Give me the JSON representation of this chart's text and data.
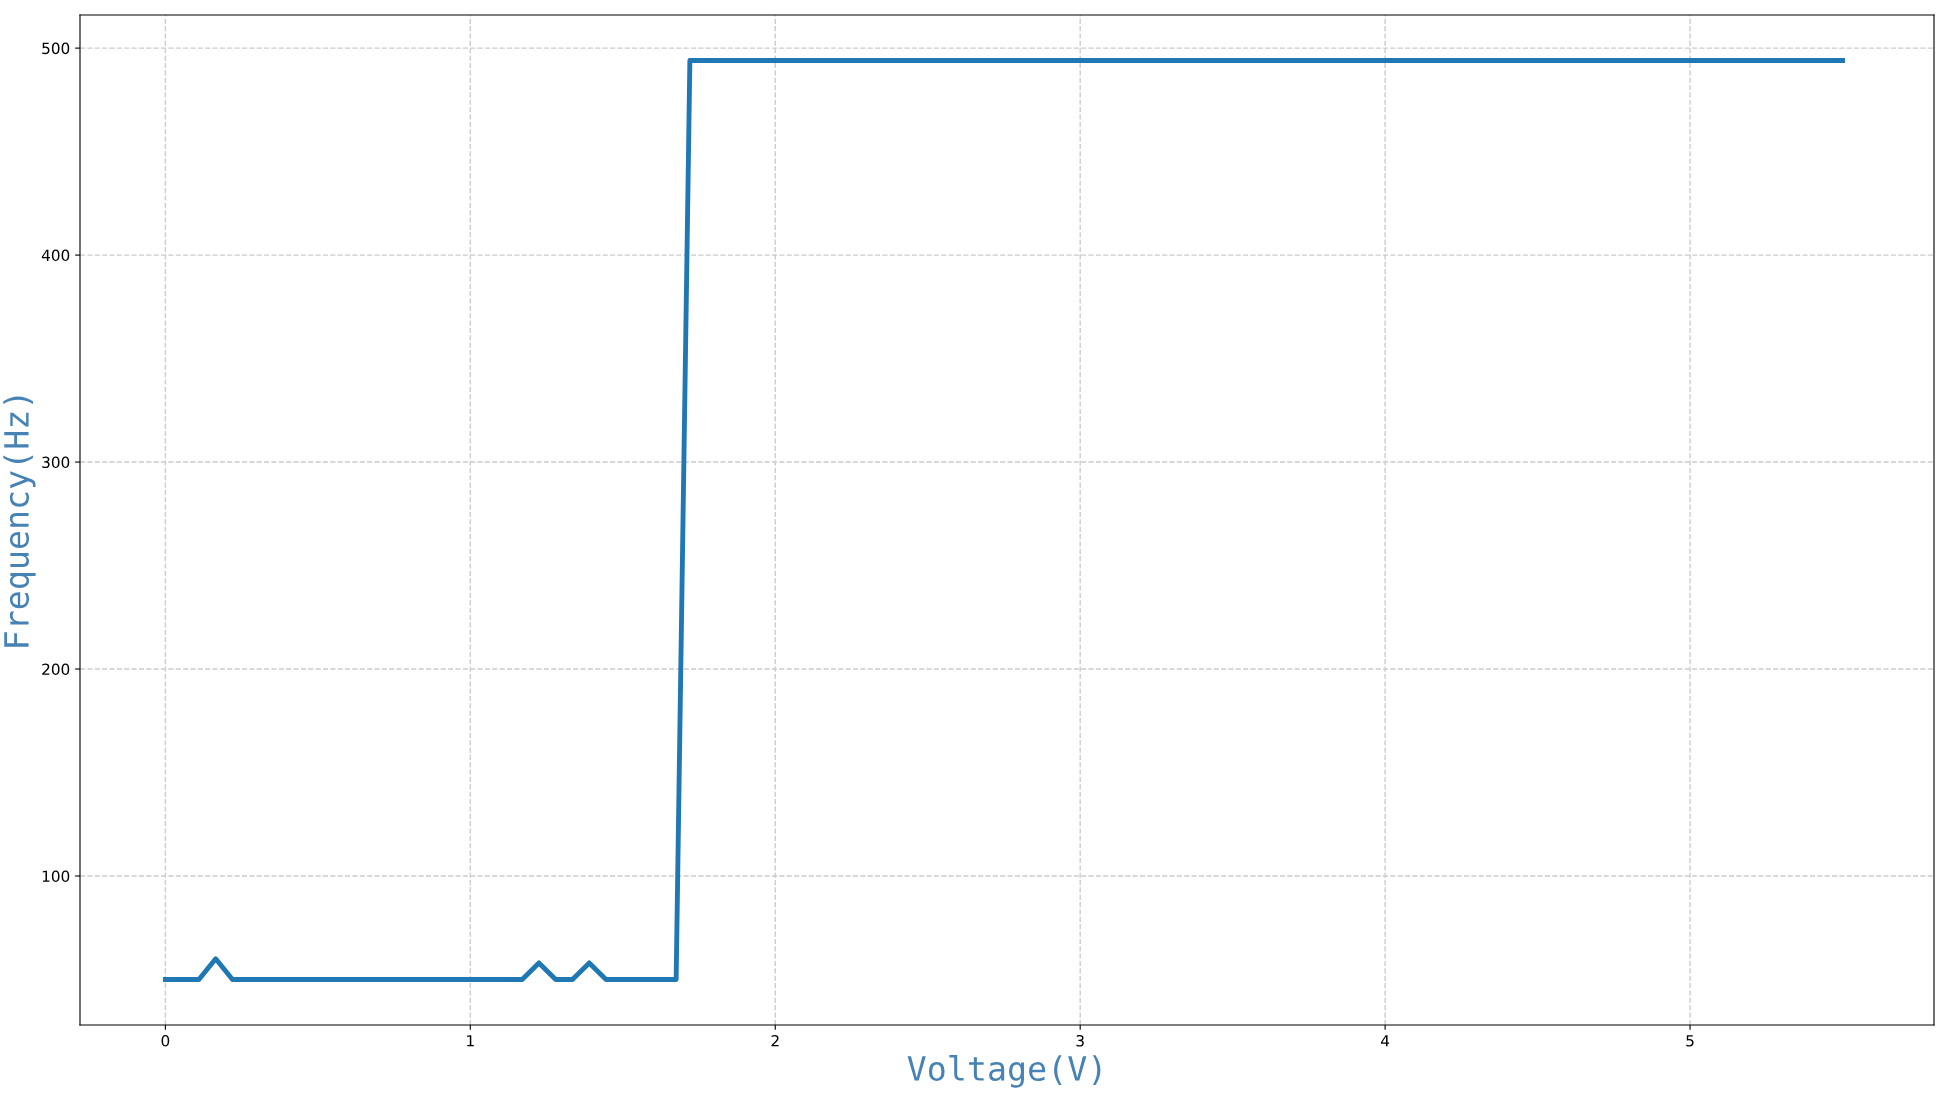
{
  "chart_data": {
    "type": "line",
    "xlabel": "Voltage(V)",
    "ylabel": "Frequency(Hz)",
    "x": [
      0,
      0.11,
      0.165,
      0.22,
      1.17,
      1.225,
      1.28,
      1.335,
      1.39,
      1.445,
      1.675,
      1.72,
      5.5
    ],
    "series": [
      {
        "color": "#1f77b4",
        "values": [
          50,
          50,
          60,
          50,
          50,
          58,
          50,
          50,
          58,
          50,
          50,
          494,
          494
        ]
      }
    ],
    "xlim": [
      -0.28,
      5.8
    ],
    "ylim": [
      28,
      516
    ],
    "xticks": [
      0,
      1,
      2,
      3,
      4,
      5
    ],
    "yticks": [
      100,
      200,
      300,
      400,
      500
    ],
    "grid": true,
    "line_style": "solid",
    "marker": "none",
    "legend": false
  }
}
